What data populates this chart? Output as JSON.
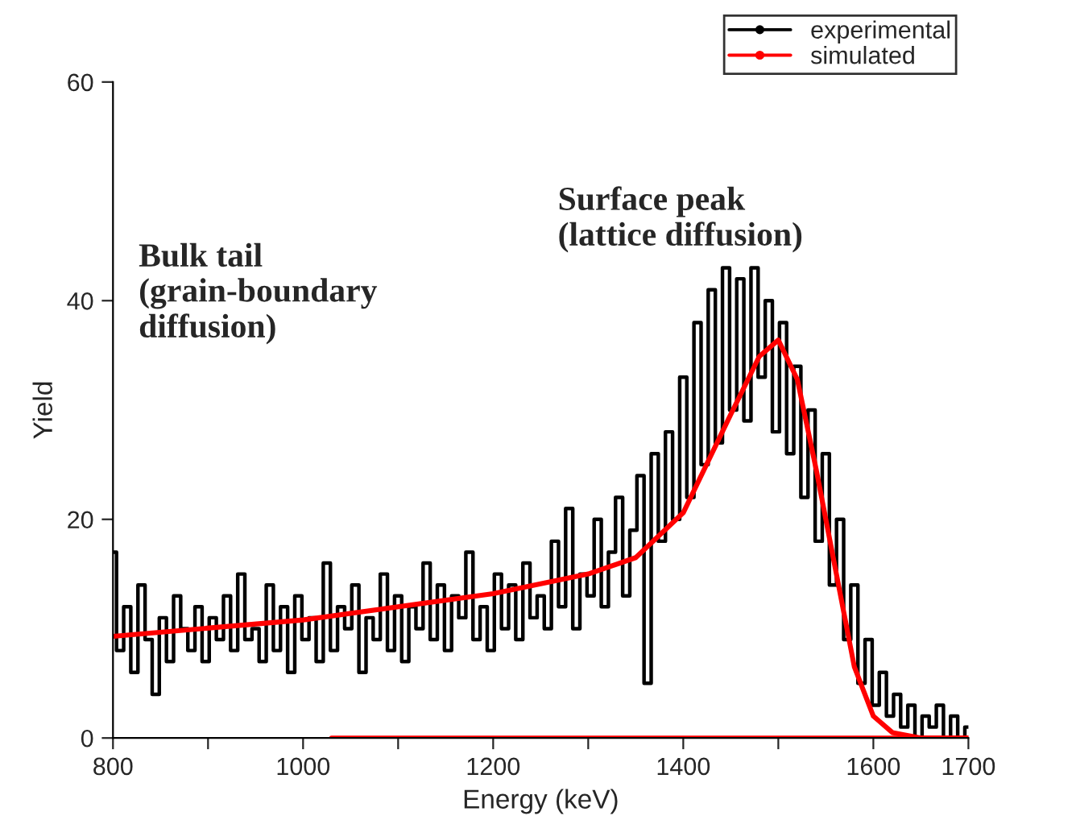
{
  "chart_data": {
    "type": "line",
    "xlabel": "Energy (keV)",
    "ylabel": "Yield",
    "xlim": [
      800,
      1700
    ],
    "ylim": [
      0,
      60
    ],
    "xticks": [
      800,
      {
        "value": 900,
        "label": null
      },
      1000,
      {
        "value": 1100,
        "label": null
      },
      1200,
      {
        "value": 1300,
        "label": null
      },
      1400,
      {
        "value": 1500,
        "label": null
      },
      1600,
      1700
    ],
    "yticks": [
      0,
      20,
      40,
      60
    ],
    "legend": "top right",
    "grid": false,
    "annotations": [
      "Bulk tail\n(grain-boundary\ndiffusion)",
      "Surface peak\n(lattice diffusion)"
    ],
    "series": [
      {
        "name": "experimental",
        "type": "step",
        "color": "#000000",
        "x": [
          800,
          807.5,
          815,
          822.5,
          830,
          837.5,
          845,
          852.5,
          860,
          867.5,
          875,
          882.5,
          890,
          897.5,
          905,
          912.5,
          920,
          927.5,
          935,
          942.5,
          950,
          957.5,
          965,
          972.5,
          980,
          987.5,
          995,
          1002.5,
          1010,
          1017.5,
          1025,
          1032.5,
          1040,
          1047.5,
          1055,
          1062.5,
          1070,
          1077.5,
          1085,
          1092.5,
          1100,
          1107.5,
          1115,
          1122.5,
          1130,
          1137.5,
          1145,
          1152.5,
          1160,
          1167.5,
          1175,
          1182.5,
          1190,
          1197.5,
          1205,
          1212.5,
          1220,
          1227.5,
          1235,
          1242.5,
          1250,
          1257.5,
          1265,
          1272.5,
          1280,
          1287.5,
          1295,
          1302.5,
          1310,
          1317.5,
          1325,
          1332.5,
          1340,
          1347.5,
          1355,
          1362.5,
          1370,
          1377.5,
          1385,
          1392.5,
          1400,
          1407.5,
          1415,
          1422.5,
          1430,
          1437.5,
          1445,
          1452.5,
          1460,
          1467.5,
          1475,
          1482.5,
          1490,
          1497.5,
          1505,
          1512.5,
          1520,
          1527.5,
          1535,
          1542.5,
          1550,
          1557.5,
          1565,
          1572.5,
          1580,
          1587.5,
          1595,
          1602.5,
          1610,
          1617.5,
          1625,
          1632.5,
          1640,
          1647.5,
          1655,
          1662.5,
          1670,
          1677.5,
          1685,
          1692.5,
          1700
        ],
        "values": [
          17,
          8,
          12,
          6,
          14,
          9,
          4,
          11,
          7,
          13,
          10,
          8,
          12,
          7,
          11,
          9,
          13,
          8,
          15,
          9,
          10,
          7,
          14,
          8,
          12,
          6,
          13,
          9,
          11,
          7,
          16,
          8,
          12,
          10,
          14,
          6,
          11,
          9,
          15,
          8,
          13,
          7,
          12,
          10,
          16,
          9,
          14,
          8,
          13,
          11,
          17,
          9,
          12,
          8,
          15,
          10,
          14,
          9,
          16,
          11,
          13,
          10,
          18,
          12,
          21,
          10,
          15,
          13,
          20,
          12,
          17,
          22,
          13,
          19,
          24,
          5,
          26,
          18,
          28,
          20,
          33,
          22,
          38,
          25,
          41,
          27,
          43,
          30,
          42,
          29,
          43,
          33,
          40,
          28,
          38,
          26,
          34,
          22,
          30,
          18,
          26,
          14,
          20,
          9,
          14,
          5,
          9,
          3,
          6,
          2,
          4,
          1,
          3,
          0,
          2,
          1,
          3,
          0,
          2,
          0,
          1
        ]
      },
      {
        "name": "simulated",
        "color": "#ff0000",
        "x": [
          800,
          1000,
          1200,
          1300,
          1350,
          1400,
          1450,
          1480,
          1500,
          1520,
          1540,
          1560,
          1580,
          1600,
          1620,
          1650,
          1700
        ],
        "values": [
          9.3,
          10.8,
          13.2,
          15,
          16.5,
          20.6,
          29.6,
          34.9,
          36.4,
          32.8,
          24.5,
          15.5,
          6.5,
          2,
          0.5,
          0,
          0
        ]
      },
      {
        "color": "#ff0000",
        "x": [
          1030,
          1700
        ],
        "values": [
          0,
          0
        ]
      }
    ]
  }
}
